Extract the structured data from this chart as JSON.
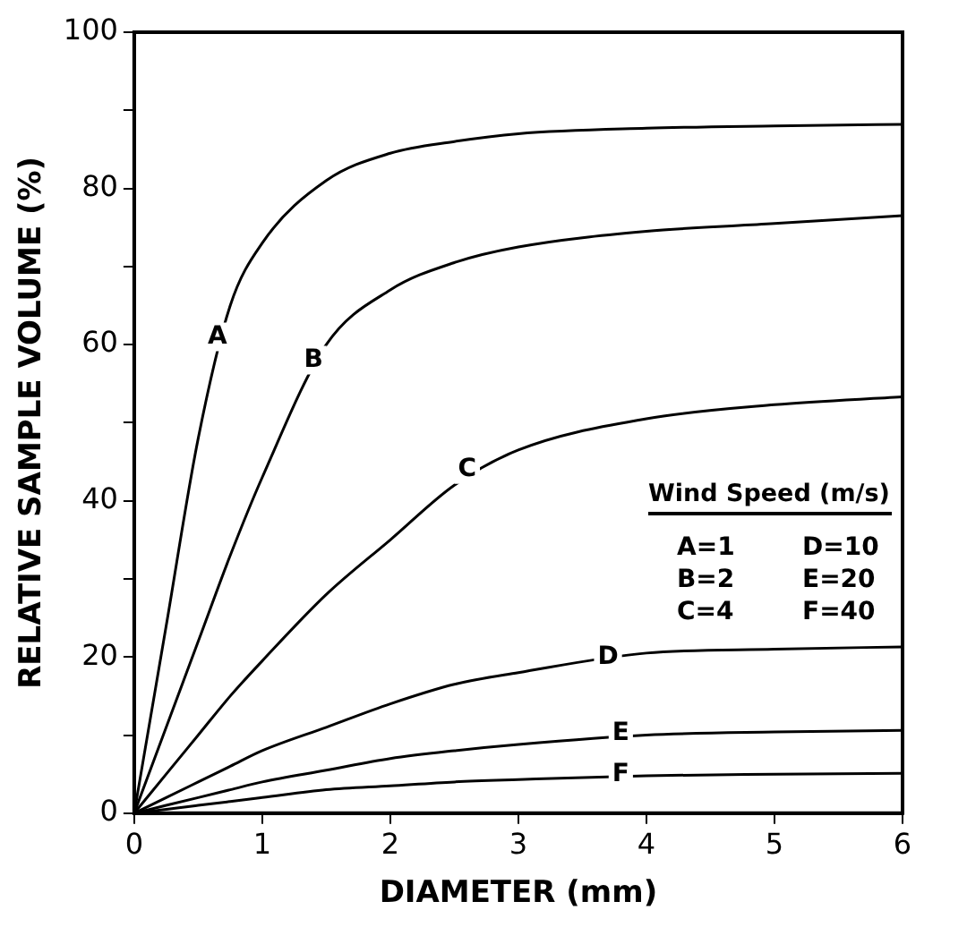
{
  "chart_data": {
    "type": "line",
    "xlabel": "DIAMETER (mm)",
    "ylabel": "RELATIVE SAMPLE VOLUME (%)",
    "legend_title": "Wind Speed (m/s)",
    "x": [
      0,
      0.25,
      0.5,
      0.75,
      1,
      1.5,
      2,
      2.5,
      3,
      4,
      5,
      6
    ],
    "series": [
      {
        "color": "#000000",
        "values": [
          0,
          24,
          48,
          65,
          73,
          81,
          84.5,
          86,
          87,
          87.7,
          88,
          88.2
        ]
      },
      {
        "color": "#000000",
        "values": [
          0,
          11,
          22,
          33,
          43,
          60,
          67,
          70.5,
          72.5,
          74.5,
          75.5,
          76.5
        ]
      },
      {
        "color": "#000000",
        "values": [
          0,
          5,
          10,
          15,
          19.5,
          28,
          35,
          42,
          46.5,
          50.5,
          52.3,
          53.3
        ]
      },
      {
        "color": "#000000",
        "values": [
          0,
          2,
          4,
          6,
          8,
          11,
          14,
          16.5,
          18,
          20.5,
          21,
          21.3
        ]
      },
      {
        "color": "#000000",
        "values": [
          0,
          1,
          2,
          3,
          4,
          5.5,
          7,
          8,
          8.8,
          10,
          10.4,
          10.6
        ]
      },
      {
        "color": "#000000",
        "values": [
          0,
          0.5,
          1,
          1.5,
          2,
          3,
          3.5,
          4,
          4.3,
          4.8,
          5,
          5.1
        ]
      }
    ],
    "annotations": [
      {
        "text": "A",
        "x": 0.65,
        "y": 61
      },
      {
        "text": "B",
        "x": 1.4,
        "y": 58
      },
      {
        "text": "C",
        "x": 2.6,
        "y": 44
      },
      {
        "text": "D",
        "x": 3.7,
        "y": 20
      },
      {
        "text": "E",
        "x": 3.8,
        "y": 10.2
      },
      {
        "text": "F",
        "x": 3.8,
        "y": 4.9
      },
      "A=1",
      "B=2",
      "C=4",
      "D=10",
      "E=20",
      "F=40"
    ],
    "xlim": [
      0,
      6
    ],
    "xticks": [
      0,
      1,
      2,
      3,
      4,
      5,
      6
    ],
    "ylim": [
      0,
      100
    ],
    "yticks": [
      0,
      {
        "value": 10,
        "label": null
      },
      20,
      {
        "value": 30,
        "label": null
      },
      40,
      {
        "value": 50,
        "label": null
      },
      60,
      {
        "value": 70,
        "label": null
      },
      80,
      {
        "value": 90,
        "label": null
      },
      100
    ],
    "grid": false,
    "legend": false,
    "marker": "none",
    "line_style": "solid"
  }
}
